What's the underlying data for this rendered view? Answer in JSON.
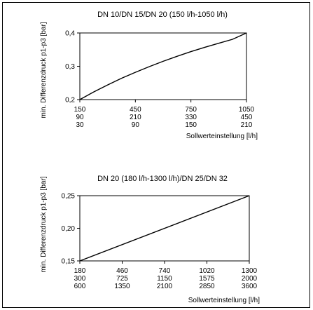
{
  "chart_data": [
    {
      "type": "line",
      "title": "DN 10/DN 15/DN 20 (150 l/h-1050 l/h)",
      "xlabel": "Sollwerteinstellung [l/h]",
      "ylabel": "min. Differenzdruck p1-p3 [bar]",
      "xlim": [
        150,
        1050
      ],
      "ylim": [
        0.2,
        0.4
      ],
      "grid": false,
      "x_ticks": [
        150,
        450,
        750,
        1050
      ],
      "x_tick_rows": [
        [
          "150",
          "450",
          "750",
          "1050"
        ],
        [
          "90",
          "210",
          "330",
          "450"
        ],
        [
          "30",
          "90",
          "150",
          "210"
        ]
      ],
      "y_ticks": [
        0.2,
        0.3,
        0.4
      ],
      "y_tick_labels": [
        "0,2",
        "0,3",
        "0,4"
      ],
      "series": [
        {
          "x": [
            150,
            225,
            300,
            375,
            450,
            525,
            600,
            675,
            750,
            825,
            900,
            975,
            1050
          ],
          "values": [
            0.2,
            0.223,
            0.244,
            0.264,
            0.282,
            0.299,
            0.315,
            0.33,
            0.344,
            0.357,
            0.369,
            0.381,
            0.4
          ]
        }
      ]
    },
    {
      "type": "line",
      "title": "DN 20 (180 l/h-1300 l/h)/DN 25/DN 32",
      "xlabel": "Sollwerteinstellung [l/h]",
      "ylabel": "min. Differenzdruck p1-p3 [bar]",
      "xlim": [
        180,
        1300
      ],
      "ylim": [
        0.15,
        0.25
      ],
      "grid": false,
      "x_ticks": [
        180,
        460,
        740,
        1020,
        1300
      ],
      "x_tick_rows": [
        [
          "180",
          "460",
          "740",
          "1020",
          "1300"
        ],
        [
          "300",
          "725",
          "1150",
          "1575",
          "2000"
        ],
        [
          "600",
          "1350",
          "2100",
          "2850",
          "3600"
        ]
      ],
      "y_ticks": [
        0.15,
        0.2,
        0.25
      ],
      "y_tick_labels": [
        "0,15",
        "0,20",
        "0,25"
      ],
      "series": [
        {
          "x": [
            180,
            1300
          ],
          "values": [
            0.15,
            0.25
          ]
        }
      ]
    }
  ]
}
